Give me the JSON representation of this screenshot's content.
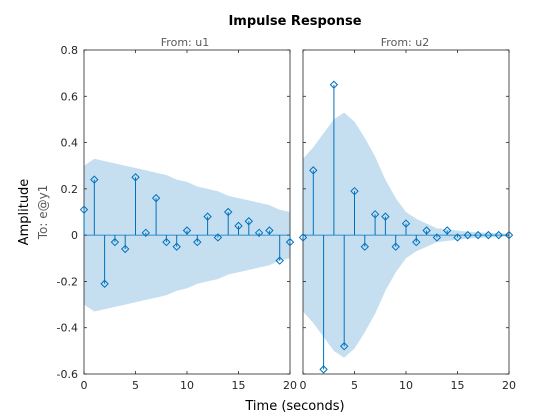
{
  "chart_data": {
    "type": "stem",
    "title": "Impulse Response",
    "xlabel": "Time (seconds)",
    "ylabel": "Amplitude",
    "output_label": "To: e@y1",
    "xlim": [
      0,
      20
    ],
    "ylim": [
      -0.6,
      0.8
    ],
    "xticks": [
      "0",
      "5",
      "10",
      "15",
      "20"
    ],
    "yticks": [
      "-0.6",
      "-0.4",
      "-0.2",
      "0",
      "0.2",
      "0.4",
      "0.6",
      "0.8"
    ],
    "colors": {
      "stem": "#0072BD",
      "band": "#c6dff0",
      "axis": "#262626"
    },
    "panels": [
      {
        "title": "From: u1",
        "x": [
          0,
          1,
          2,
          3,
          4,
          5,
          6,
          7,
          8,
          9,
          10,
          11,
          12,
          13,
          14,
          15,
          16,
          17,
          18,
          19,
          20
        ],
        "y": [
          0.11,
          0.24,
          -0.21,
          -0.03,
          -0.06,
          0.25,
          0.01,
          0.16,
          -0.03,
          -0.05,
          0.02,
          -0.03,
          0.08,
          -0.01,
          0.1,
          0.04,
          0.06,
          0.01,
          0.02,
          -0.11,
          -0.03
        ],
        "band_upper": [
          0.3,
          0.33,
          0.32,
          0.31,
          0.3,
          0.29,
          0.28,
          0.27,
          0.26,
          0.24,
          0.23,
          0.21,
          0.2,
          0.19,
          0.17,
          0.16,
          0.15,
          0.14,
          0.13,
          0.11,
          0.1
        ],
        "band_lower": [
          -0.3,
          -0.33,
          -0.32,
          -0.31,
          -0.3,
          -0.29,
          -0.28,
          -0.27,
          -0.26,
          -0.24,
          -0.23,
          -0.21,
          -0.2,
          -0.19,
          -0.17,
          -0.16,
          -0.15,
          -0.14,
          -0.13,
          -0.11,
          -0.1
        ]
      },
      {
        "title": "From: u2",
        "x": [
          0,
          1,
          2,
          3,
          4,
          5,
          6,
          7,
          8,
          9,
          10,
          11,
          12,
          13,
          14,
          15,
          16,
          17,
          18,
          19,
          20
        ],
        "y": [
          -0.01,
          0.28,
          -0.58,
          0.65,
          -0.48,
          0.19,
          -0.05,
          0.09,
          0.08,
          -0.05,
          0.05,
          -0.03,
          0.02,
          -0.01,
          0.02,
          -0.01,
          0.0,
          0.0,
          0.0,
          0.0,
          0.0
        ],
        "band_upper": [
          0.33,
          0.38,
          0.44,
          0.5,
          0.53,
          0.49,
          0.42,
          0.34,
          0.24,
          0.16,
          0.1,
          0.07,
          0.05,
          0.03,
          0.025,
          0.02,
          0.015,
          0.012,
          0.01,
          0.008,
          0.006
        ],
        "band_lower": [
          -0.33,
          -0.38,
          -0.44,
          -0.5,
          -0.53,
          -0.49,
          -0.42,
          -0.34,
          -0.24,
          -0.16,
          -0.1,
          -0.07,
          -0.05,
          -0.03,
          -0.025,
          -0.02,
          -0.015,
          -0.012,
          -0.01,
          -0.008,
          -0.006
        ]
      }
    ]
  }
}
